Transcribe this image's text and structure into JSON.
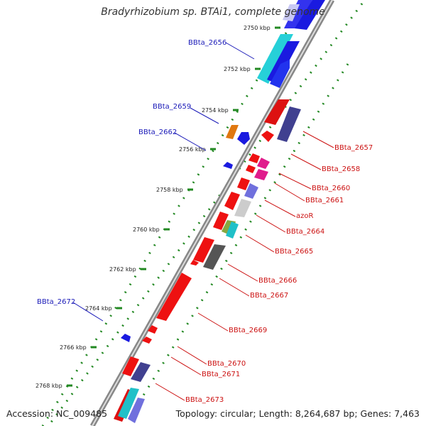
{
  "title": "Bradyrhizobium sp. BTAi1, complete genome",
  "footer": {
    "accession": "Accession: NC_009485",
    "summary": "Topology: circular; Length: 8,264,687 bp; Genes: 7,463"
  },
  "ticks": [
    {
      "kbp": 2750,
      "label": "2750 kbp"
    },
    {
      "kbp": 2752,
      "label": "2752 kbp"
    },
    {
      "kbp": 2754,
      "label": "2754 kbp"
    },
    {
      "kbp": 2756,
      "label": "2756 kbp"
    },
    {
      "kbp": 2758,
      "label": "2758 kbp"
    },
    {
      "kbp": 2760,
      "label": "2760 kbp"
    },
    {
      "kbp": 2762,
      "label": "2762 kbp"
    },
    {
      "kbp": 2764,
      "label": "2764 kbp"
    },
    {
      "kbp": 2766,
      "label": "2766 kbp"
    },
    {
      "kbp": 2768,
      "label": "2768 kbp"
    }
  ],
  "genes_forward": [
    {
      "name": "BBta_2656",
      "color": "#1aa6ad"
    },
    {
      "name": "BBta_2659",
      "color": "#e07810"
    },
    {
      "name": "BBta_2662",
      "color": "#1a1ae0"
    },
    {
      "name": "BBta_2672",
      "color": "#1a1ae0"
    }
  ],
  "genes_reverse": [
    {
      "name": "BBta_2657",
      "color": "#dd1111"
    },
    {
      "name": "BBta_2658",
      "color": "#dd1111"
    },
    {
      "name": "BBta_2660",
      "color": "#e01c8c"
    },
    {
      "name": "BBta_2661",
      "color": "#e01c8c"
    },
    {
      "name": "azoR",
      "color": "#dd1111"
    },
    {
      "name": "BBta_2664",
      "color": "#20a0a8"
    },
    {
      "name": "BBta_2665",
      "color": "#dd1111"
    },
    {
      "name": "BBta_2666",
      "color": "#dd1111"
    },
    {
      "name": "BBta_2667",
      "color": "#555555"
    },
    {
      "name": "BBta_2669",
      "color": "#dd1111"
    },
    {
      "name": "BBta_2670",
      "color": "#dd1111"
    },
    {
      "name": "BBta_2671",
      "color": "#dd1111"
    },
    {
      "name": "BBta_2673",
      "color": "#dd1111"
    }
  ],
  "colors": {
    "forward_label": "#1a1ab8",
    "reverse_label": "#cc1111",
    "backbone": "#999999",
    "tick_dot": "#228822"
  }
}
